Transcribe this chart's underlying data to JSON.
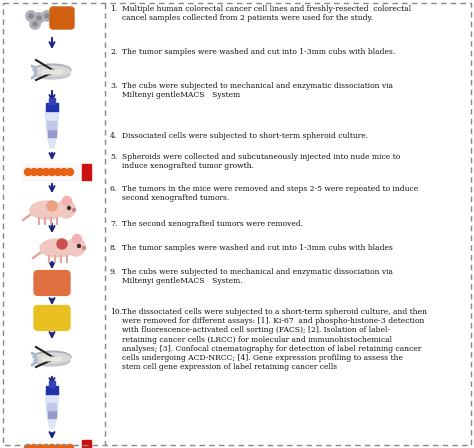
{
  "steps": [
    {
      "num": "1.",
      "text": "Multiple human colorectal cancer cell lines and freshly-resected  colorectal\ncancel samples collected from 2 patients were used for the study."
    },
    {
      "num": "2.",
      "text": "The tumor samples were washed and cut into 1-3mm cubs with blades."
    },
    {
      "num": "3.",
      "text": "The cubs were subjected to mechanical and enzymatic dissociation via\nMiltenyi gentleMACS System"
    },
    {
      "num": "4.",
      "text": "Dissociated cells were subjected to short-term spheroid culture."
    },
    {
      "num": "5.",
      "text": "Spheroids were collected and subcutaneously injected into nude mice to\ninduce xenografted tumor growth."
    },
    {
      "num": "6.",
      "text": "The tumors in the mice were removed and steps 2-5 were repeated to induce\nsecond xenografted tumors."
    },
    {
      "num": "7.",
      "text": "The second xenografted tumors were removed."
    },
    {
      "num": "8.",
      "text": "The tumor samples were washed and cut into 1-3mm cubs with blades"
    },
    {
      "num": "9.",
      "text": "The cubs were subjected to mechanical and enzymatic dissociation via\nMiltenyi gentleMACS System."
    },
    {
      "num": "10.",
      "text": "The dissociated cells were subjected to a short-term spheroid culture, and then\nwere removed for different assays: [1]. Ki-67  and phospho-histone-3 detection\nwith fluorescence-activated cell sorting (FACS); [2]. Isolation of label-\nretaining cancer cells (LRCC) for molecular and immunohistochemical\nanalyses; [3]. Confocal cinematography for detection of label retaining cancer\ncells undergoing ACD-NRCC; [4]. Gene expression profiling to assess the\nstem cell gene expression of label retaining cancer cells"
    }
  ],
  "bg_color": "#ffffff",
  "text_color": "#111111",
  "dash_color": "#888888",
  "arrow_color": "#1a2580",
  "figure_width": 4.74,
  "figure_height": 4.48,
  "dpi": 100
}
